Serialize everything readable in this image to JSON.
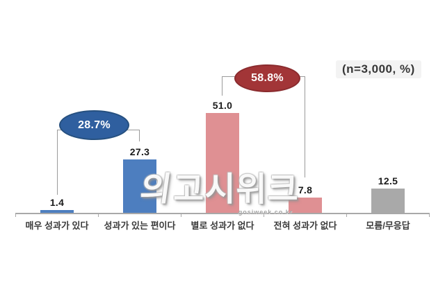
{
  "note": "(n=3,000, %)",
  "watermark": {
    "logo_mark": "의",
    "logo_text": "고시위크",
    "site": "gosiweek.co.kr"
  },
  "colors": {
    "bar_blue": "#4d7ebf",
    "bar_pink": "#df9093",
    "bar_gray": "#a9a9a9",
    "oval_blue": "#2f5f9f",
    "oval_red": "#a23537",
    "axis_gray": "#a8a8a8"
  },
  "chart_data": {
    "type": "bar",
    "categories": [
      "매우 성과가 있다",
      "성과가 있는 편이다",
      "별로 성과가 없다",
      "전혀 성과가 없다",
      "모름/무응답"
    ],
    "values": [
      1.4,
      27.3,
      51.0,
      7.8,
      12.5
    ],
    "value_labels": [
      "1.4",
      "27.3",
      "51.0",
      "7.8",
      "12.5"
    ],
    "bar_colors": [
      "#4d7ebf",
      "#4d7ebf",
      "#df9093",
      "#df9093",
      "#a9a9a9"
    ],
    "ylim": [
      0,
      60
    ],
    "grid": false,
    "legend": "none",
    "note": "(n=3,000, %)",
    "annotations": [
      {
        "label": "28.7%",
        "covers": [
          "매우 성과가 있다",
          "성과가 있는 편이다"
        ],
        "color": "#2f5f9f"
      },
      {
        "label": "58.8%",
        "covers": [
          "별로 성과가 없다",
          "전혀 성과가 없다"
        ],
        "color": "#a23537"
      }
    ]
  }
}
